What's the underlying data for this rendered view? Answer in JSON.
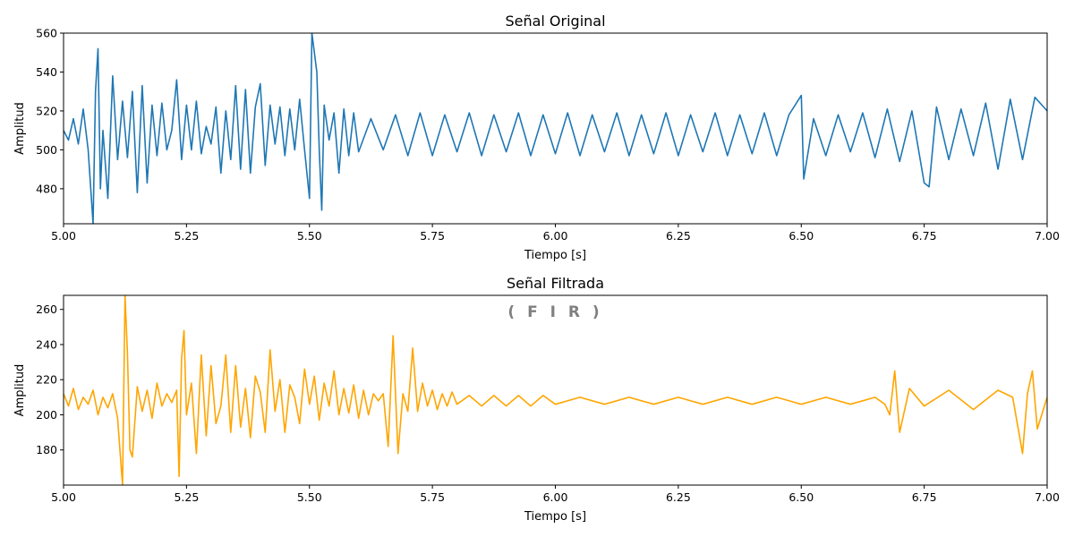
{
  "chart_data": [
    {
      "type": "line",
      "title": "Señal Original",
      "xlabel": "Tiempo [s]",
      "ylabel": "Amplitud",
      "xlim": [
        5.0,
        7.0
      ],
      "ylim": [
        462,
        560
      ],
      "xticks": [
        "5.00",
        "5.25",
        "5.50",
        "5.75",
        "6.00",
        "6.25",
        "6.50",
        "6.75",
        "7.00"
      ],
      "yticks": [
        "480",
        "500",
        "520",
        "540",
        "560"
      ],
      "grid": false,
      "color": "#1f77b4",
      "series": [
        {
          "x": [
            5.0,
            5.01,
            5.02,
            5.03,
            5.04,
            5.05,
            5.06,
            5.065,
            5.07,
            5.075,
            5.08,
            5.09,
            5.1,
            5.11,
            5.12,
            5.13,
            5.14,
            5.15,
            5.16,
            5.17,
            5.18,
            5.19,
            5.2,
            5.21,
            5.22,
            5.23,
            5.24,
            5.25,
            5.26,
            5.27,
            5.28,
            5.29,
            5.3,
            5.31,
            5.32,
            5.33,
            5.34,
            5.35,
            5.36,
            5.37,
            5.38,
            5.39,
            5.4,
            5.41,
            5.42,
            5.43,
            5.44,
            5.45,
            5.46,
            5.47,
            5.48,
            5.49,
            5.5,
            5.505,
            5.515,
            5.52,
            5.525,
            5.53,
            5.54,
            5.55,
            5.56,
            5.57,
            5.58,
            5.59,
            5.6,
            5.625,
            5.65,
            5.675,
            5.7,
            5.725,
            5.75,
            5.775,
            5.8,
            5.825,
            5.85,
            5.875,
            5.9,
            5.925,
            5.95,
            5.975,
            6.0,
            6.025,
            6.05,
            6.075,
            6.1,
            6.125,
            6.15,
            6.175,
            6.2,
            6.225,
            6.25,
            6.275,
            6.3,
            6.325,
            6.35,
            6.375,
            6.4,
            6.425,
            6.45,
            6.475,
            6.5,
            6.505,
            6.525,
            6.55,
            6.575,
            6.6,
            6.625,
            6.65,
            6.675,
            6.7,
            6.725,
            6.75,
            6.76,
            6.775,
            6.8,
            6.825,
            6.85,
            6.875,
            6.9,
            6.925,
            6.95,
            6.975,
            7.0
          ],
          "y": [
            510,
            505,
            516,
            503,
            521,
            500,
            462,
            530,
            552,
            480,
            510,
            475,
            538,
            495,
            525,
            496,
            530,
            478,
            533,
            483,
            523,
            497,
            524,
            500,
            510,
            536,
            495,
            523,
            500,
            525,
            498,
            512,
            503,
            522,
            488,
            520,
            495,
            533,
            490,
            531,
            488,
            522,
            534,
            492,
            523,
            503,
            522,
            497,
            521,
            500,
            526,
            500,
            475,
            560,
            540,
            500,
            469,
            523,
            505,
            519,
            488,
            521,
            497,
            519,
            499,
            516,
            500,
            518,
            497,
            519,
            497,
            518,
            499,
            519,
            497,
            518,
            499,
            519,
            497,
            518,
            498,
            519,
            497,
            518,
            499,
            519,
            497,
            518,
            498,
            519,
            497,
            518,
            499,
            519,
            497,
            518,
            498,
            519,
            497,
            518,
            528,
            485,
            516,
            497,
            518,
            499,
            519,
            496,
            521,
            494,
            520,
            483,
            481,
            522,
            495,
            521,
            497,
            524,
            490,
            526,
            495,
            527,
            520
          ]
        }
      ]
    },
    {
      "type": "line",
      "title": "Señal Filtrada",
      "annotation": "( F I R )",
      "xlabel": "Tiempo [s]",
      "ylabel": "Amplitud",
      "xlim": [
        5.0,
        7.0
      ],
      "ylim": [
        160,
        268
      ],
      "xticks": [
        "5.00",
        "5.25",
        "5.50",
        "5.75",
        "6.00",
        "6.25",
        "6.50",
        "6.75",
        "7.00"
      ],
      "yticks": [
        "180",
        "200",
        "220",
        "240",
        "260"
      ],
      "grid": false,
      "color": "#ffa500",
      "series": [
        {
          "x": [
            5.0,
            5.01,
            5.02,
            5.03,
            5.04,
            5.05,
            5.06,
            5.07,
            5.08,
            5.09,
            5.1,
            5.11,
            5.12,
            5.125,
            5.13,
            5.135,
            5.14,
            5.15,
            5.16,
            5.17,
            5.18,
            5.19,
            5.2,
            5.21,
            5.22,
            5.23,
            5.235,
            5.24,
            5.245,
            5.25,
            5.26,
            5.27,
            5.28,
            5.29,
            5.3,
            5.31,
            5.32,
            5.33,
            5.34,
            5.35,
            5.36,
            5.37,
            5.38,
            5.39,
            5.4,
            5.41,
            5.42,
            5.43,
            5.44,
            5.45,
            5.46,
            5.47,
            5.48,
            5.49,
            5.5,
            5.51,
            5.52,
            5.53,
            5.54,
            5.55,
            5.56,
            5.57,
            5.58,
            5.59,
            5.6,
            5.61,
            5.62,
            5.63,
            5.64,
            5.65,
            5.66,
            5.67,
            5.68,
            5.69,
            5.7,
            5.71,
            5.72,
            5.73,
            5.74,
            5.75,
            5.76,
            5.77,
            5.78,
            5.79,
            5.8,
            5.825,
            5.85,
            5.875,
            5.9,
            5.925,
            5.95,
            5.975,
            6.0,
            6.05,
            6.1,
            6.15,
            6.2,
            6.25,
            6.3,
            6.35,
            6.4,
            6.45,
            6.5,
            6.55,
            6.6,
            6.65,
            6.67,
            6.68,
            6.69,
            6.7,
            6.72,
            6.75,
            6.8,
            6.85,
            6.9,
            6.93,
            6.95,
            6.96,
            6.97,
            6.98,
            7.0
          ],
          "y": [
            212,
            205,
            215,
            203,
            210,
            206,
            214,
            200,
            210,
            204,
            212,
            198,
            160,
            268,
            235,
            180,
            176,
            216,
            202,
            214,
            198,
            218,
            205,
            212,
            207,
            214,
            165,
            232,
            248,
            200,
            218,
            178,
            234,
            188,
            228,
            195,
            205,
            234,
            190,
            228,
            193,
            215,
            187,
            222,
            213,
            190,
            237,
            202,
            220,
            190,
            217,
            210,
            195,
            226,
            206,
            222,
            197,
            218,
            205,
            225,
            200,
            215,
            201,
            217,
            198,
            214,
            200,
            212,
            208,
            212,
            182,
            245,
            178,
            212,
            202,
            238,
            202,
            218,
            205,
            214,
            203,
            212,
            205,
            213,
            206,
            211,
            205,
            211,
            205,
            211,
            205,
            211,
            206,
            210,
            206,
            210,
            206,
            210,
            206,
            210,
            206,
            210,
            206,
            210,
            206,
            210,
            206,
            200,
            225,
            190,
            215,
            205,
            214,
            203,
            214,
            210,
            178,
            212,
            225,
            192,
            210
          ]
        }
      ]
    }
  ]
}
